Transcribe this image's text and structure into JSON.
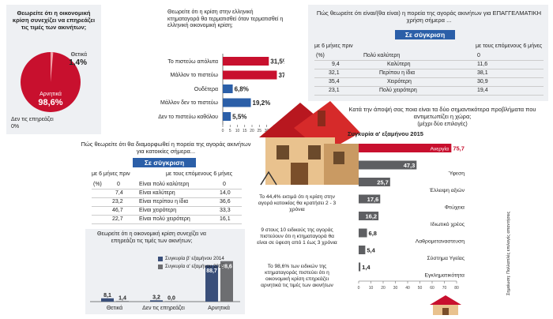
{
  "colors": {
    "red": "#c8102e",
    "blue": "#2b5fa8",
    "gray": "#6d6e71",
    "navy": "#3a4f7a",
    "lightpanel": "#eef0f3"
  },
  "pie": {
    "question": "Θεωρείτε ότι η οικονομική κρίση συνεχίζει να επηρεάζει τις τιμές των ακινήτων;",
    "slices": [
      {
        "label": "Θετικά",
        "value": 1.4,
        "value_text": "1,4%"
      },
      {
        "label": "Αρνητικά",
        "value": 98.6,
        "value_text": "98,6%"
      },
      {
        "label": "Δεν τις επηρεάζει",
        "value": 0,
        "value_text": "0%"
      }
    ]
  },
  "chart_data": [
    {
      "type": "bar",
      "title": "Θεωρείτε ότι η κρίση στην ελληνική κτηματαγορά θα τερματισθεί όταν τερματισθεί η ελληνική οικονομική κρίση;",
      "categories": [
        "Το πιστεύω απόλυτα",
        "Μάλλον το πιστεύω",
        "Ουδέτερα",
        "Μάλλον δεν το πιστεύω",
        "Δεν το πιστεύω καθόλου"
      ],
      "values": [
        31.5,
        37.0,
        6.8,
        19.2,
        5.5
      ],
      "value_labels": [
        "31,5%",
        "37,0%",
        "6,8%",
        "19,2%",
        "5,5%"
      ],
      "xlim": [
        0,
        40
      ],
      "ticks": [
        "0",
        "5",
        "10",
        "15",
        "20",
        "25",
        "30",
        "35",
        "40"
      ]
    },
    {
      "type": "bar",
      "title": "Θεωρείτε ότι η οικονομική κρίση συνεχίζει να επηρεάζει τις τιμές των ακινήτων;",
      "categories": [
        "Θετικά",
        "Δεν τις επηρεάζει",
        "Αρνητικά"
      ],
      "series": [
        {
          "name": "Συγκυρία β' εξαμήνου 2014",
          "values": [
            8.1,
            3.2,
            88.7
          ],
          "labels": [
            "8,1",
            "3,2",
            "88,7"
          ]
        },
        {
          "name": "Συγκυρία α' εξαμήνου 2015",
          "values": [
            1.4,
            0.0,
            98.6
          ],
          "labels": [
            "1,4",
            "0,0",
            "98,6"
          ]
        }
      ]
    },
    {
      "type": "bar",
      "title": "Συγκυρία α' εξαμήνου 2015",
      "categories": [
        "Ανεργία",
        "Ύφεση",
        "Έλλειψη αξιών",
        "Φτώχεια",
        "Ιδιωτικό χρέος",
        "Λαθρομεταναστευση",
        "Σύστημα Υγείας",
        "Εγκληματικότητα"
      ],
      "values": [
        75.7,
        47.3,
        25.7,
        17.6,
        16.2,
        6.8,
        5.4,
        1.4
      ],
      "value_labels": [
        "75,7",
        "47,3",
        "25,7",
        "17,6",
        "16,2",
        "6,8",
        "5,4",
        "1,4"
      ],
      "xlim": [
        0,
        80
      ],
      "ticks": [
        "0",
        "10",
        "20",
        "30",
        "40",
        "50",
        "60",
        "70",
        "80"
      ]
    }
  ],
  "professional": {
    "question": "Πώς θεωρείτε ότι είναι/(θα είναι) η πορεία της αγοράς ακινήτων για ΕΠΑΓΓΕΛΜΑΤΙΚΗ χρήση σήμερα ...",
    "badge": "Σε σύγκριση",
    "col_left": "με 6 μήνες πριν",
    "col_right": "με τους επόμενους 6 μήνες",
    "rows": [
      {
        "left": "(%)",
        "mid": "Πολύ καλύτερη",
        "right": "0"
      },
      {
        "left": "9,4",
        "mid": "Καλύτερη",
        "right": "11,6"
      },
      {
        "left": "32,1",
        "mid": "Περίπου η ίδια",
        "right": "38,1"
      },
      {
        "left": "35,4",
        "mid": "Χειρότερη",
        "right": "30,9"
      },
      {
        "left": "23,1",
        "mid": "Πολύ χειρότερη",
        "right": "19,4"
      }
    ]
  },
  "residential": {
    "question": "Πώς θεωρείτε ότι θα διαμορφωθεί η πορεία της αγοράς ακινήτων για κατοικίες σήμερα...",
    "badge": "Σε σύγκριση",
    "col_left": "με 6 μήνες πριν",
    "col_right": "με τους επόμενους 6 μήνες",
    "rows": [
      {
        "left": "(%)",
        "left2": "0",
        "mid": "Είναι πολύ καλύτερη",
        "right": "0"
      },
      {
        "left": "7,4",
        "mid": "Είναι καλύτερη",
        "right": "14,0"
      },
      {
        "left": "23,2",
        "mid": "Είναι περίπου η ίδια",
        "right": "36,6"
      },
      {
        "left": "46,7",
        "mid": "Είναι χειρότερη",
        "right": "33,3"
      },
      {
        "left": "22,7",
        "mid": "Είναι πολύ χειρότερη",
        "right": "16,1"
      }
    ]
  },
  "problems": {
    "question": "Κατά την άποψή σας ποια είναι τα δύο σημαντικότερα προβλήματα που αντιμετωπίζει η χώρα;",
    "note": "(μέχρι δύο επιλογές)",
    "source": "Σημείωση: Πολλαπλές επιλογές απαντήσεις"
  },
  "stats": [
    {
      "big": "44,4%",
      "text": "Το 44,4% εκτιμά ότι η κρίση στην αγορά κατοικίας θα κρατήσει 2 - 3 χρόνια"
    },
    {
      "big": "9 στους 10",
      "text": "9 στους 10 ειδικούς της αγοράς πιστεύουν ότι η κτηματαγορά θα είναι σε ύφεση από 1 έως 3 χρόνια"
    },
    {
      "big": "98,6%",
      "text": "Το 98,6% των ειδικών της κτηματαγοράς πιστεύει ότι η οικονομική κρίση επηρεάζει αρνητικά τις τιμές των ακινήτων"
    }
  ]
}
